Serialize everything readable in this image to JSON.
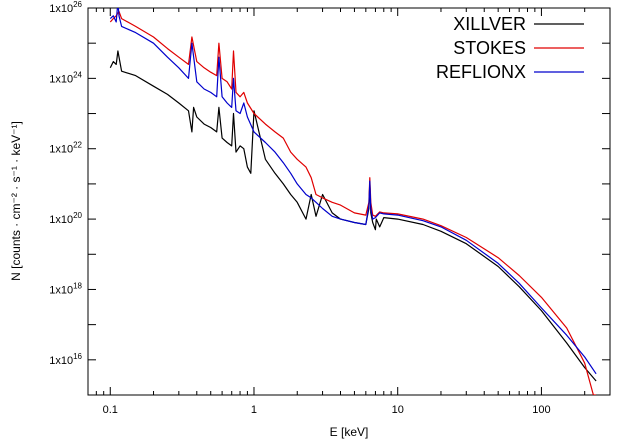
{
  "chart_data": {
    "type": "line",
    "title": "",
    "xlabel": "E [keV]",
    "ylabel": "N [counts · cm⁻² · s⁻¹ · keV⁻¹]",
    "x_scale": "log",
    "y_scale": "log",
    "xlim": [
      0.07,
      300
    ],
    "ylim": [
      1000000000000000.0,
      1e+26
    ],
    "x_ticks": [
      {
        "value": 0.1,
        "label": "0.1"
      },
      {
        "value": 1,
        "label": "1"
      },
      {
        "value": 10,
        "label": "10"
      },
      {
        "value": 100,
        "label": "100"
      }
    ],
    "y_ticks": [
      {
        "value": 1e+16,
        "mantissa": "1x10",
        "exp": "16"
      },
      {
        "value": 1e+18,
        "mantissa": "1x10",
        "exp": "18"
      },
      {
        "value": 1e+20,
        "mantissa": "1x10",
        "exp": "20"
      },
      {
        "value": 1e+22,
        "mantissa": "1x10",
        "exp": "22"
      },
      {
        "value": 1e+24,
        "mantissa": "1x10",
        "exp": "24"
      },
      {
        "value": 1e+26,
        "mantissa": "1x10",
        "exp": "26"
      }
    ],
    "legend_position": "top-right",
    "grid": false,
    "series": [
      {
        "name": "XILLVER",
        "color": "#000000",
        "x": [
          0.1,
          0.105,
          0.11,
          0.113,
          0.12,
          0.15,
          0.2,
          0.25,
          0.3,
          0.35,
          0.37,
          0.38,
          0.4,
          0.45,
          0.5,
          0.55,
          0.57,
          0.6,
          0.65,
          0.7,
          0.72,
          0.75,
          0.8,
          0.85,
          0.9,
          0.95,
          1.0,
          1.2,
          1.4,
          1.6,
          1.8,
          2.0,
          2.3,
          2.5,
          2.7,
          3.0,
          3.5,
          4.0,
          5.0,
          6.0,
          6.3,
          6.4,
          6.5,
          6.7,
          7.0,
          7.1,
          7.5,
          8.0,
          10,
          15,
          20,
          30,
          50,
          70,
          100,
          150,
          200,
          240
        ],
        "y": [
          2e+24,
          3e+24,
          2.5e+24,
          6e+24,
          1.6e+24,
          1.2e+24,
          6e+23,
          3.5e+23,
          2e+23,
          1.2e+23,
          3e+22,
          1.5e+23,
          8e+22,
          5e+22,
          4e+22,
          3e+22,
          1.5e+23,
          2e+22,
          1.5e+22,
          1.2e+22,
          1e+23,
          8e+21,
          1.2e+22,
          1e+22,
          3e+21,
          2e+21,
          1.2e+23,
          5e+21,
          2e+21,
          1e+21,
          5e+20,
          3e+20,
          1e+20,
          5e+20,
          1.2e+20,
          5e+20,
          1.5e+20,
          1e+20,
          8e+19,
          7e+19,
          2e+20,
          1e+21,
          1.5e+20,
          8e+19,
          5e+19,
          1e+20,
          6e+19,
          1.1e+20,
          1e+20,
          7e+19,
          4.5e+19,
          2e+19,
          4.5e+18,
          1.2e+18,
          2.5e+17,
          3e+16,
          6000000000000000.0,
          2500000000000000.0
        ]
      },
      {
        "name": "STOKES",
        "color": "#e00000",
        "x": [
          0.1,
          0.105,
          0.11,
          0.115,
          0.12,
          0.15,
          0.2,
          0.25,
          0.3,
          0.35,
          0.37,
          0.4,
          0.45,
          0.5,
          0.55,
          0.57,
          0.6,
          0.65,
          0.7,
          0.72,
          0.75,
          0.8,
          0.85,
          0.9,
          1.0,
          1.2,
          1.4,
          1.6,
          1.8,
          2.0,
          2.3,
          2.5,
          2.7,
          3.0,
          3.5,
          4.0,
          5.0,
          6.0,
          6.3,
          6.4,
          6.5,
          6.7,
          7.0,
          7.5,
          8.0,
          10,
          15,
          20,
          30,
          50,
          70,
          100,
          150,
          200,
          230,
          240
        ],
        "y": [
          4e+25,
          5e+25,
          6e+25,
          8e+25,
          5e+25,
          3e+25,
          1.5e+25,
          7e+24,
          4e+24,
          2.5e+24,
          1.5e+25,
          3e+24,
          2e+24,
          1.5e+24,
          1.2e+24,
          1e+25,
          1e+24,
          8e+23,
          5e+23,
          6e+24,
          4e+23,
          3e+23,
          4e+23,
          2e+23,
          1e+23,
          5e+22,
          3e+22,
          2e+22,
          8e+21,
          5e+21,
          3e+21,
          1.5e+21,
          5e+20,
          4e+20,
          3e+20,
          2.5e+20,
          1.5e+20,
          1.3e+20,
          3e+20,
          1.5e+21,
          3e+20,
          1.3e+20,
          1.2e+20,
          1.6e+20,
          1.5e+20,
          1.4e+20,
          1e+20,
          6.5e+19,
          3e+19,
          8e+18,
          2.5e+18,
          6e+17,
          8e+16,
          8000000000000000.0,
          1000000000000000.0,
          1000000000000000.0
        ]
      },
      {
        "name": "REFLIONX",
        "color": "#0000cc",
        "x": [
          0.1,
          0.105,
          0.11,
          0.113,
          0.115,
          0.12,
          0.15,
          0.2,
          0.25,
          0.3,
          0.35,
          0.37,
          0.4,
          0.45,
          0.5,
          0.55,
          0.57,
          0.6,
          0.65,
          0.7,
          0.72,
          0.75,
          0.8,
          0.85,
          0.9,
          1.0,
          1.2,
          1.4,
          1.6,
          1.8,
          2.0,
          2.3,
          2.5,
          2.7,
          3.0,
          3.5,
          4.0,
          5.0,
          6.0,
          6.3,
          6.4,
          6.5,
          6.7,
          7.0,
          7.5,
          8.0,
          10,
          15,
          20,
          30,
          50,
          70,
          100,
          150,
          200,
          240
        ],
        "y": [
          5e+25,
          6e+25,
          4e+25,
          1.5e+26,
          6e+25,
          3e+25,
          2e+25,
          1e+25,
          4e+24,
          2e+24,
          1e+24,
          1e+25,
          8e+23,
          5e+23,
          4e+23,
          3e+23,
          4e+24,
          3e+23,
          2e+23,
          1.5e+23,
          1e+24,
          1.2e+23,
          1e+23,
          2e+23,
          8e+22,
          3e+22,
          1.5e+22,
          8e+21,
          4e+21,
          2e+21,
          1e+21,
          5e+20,
          4e+20,
          3e+20,
          2e+20,
          1.2e+20,
          1e+20,
          8e+19,
          7e+19,
          2.5e+20,
          1.2e+21,
          2e+20,
          1e+20,
          1.1e+20,
          1.5e+20,
          1.4e+20,
          1.3e+20,
          9e+19,
          6e+19,
          2.5e+19,
          5.5e+18,
          1.5e+18,
          3e+17,
          5e+16,
          1.2e+16,
          4000000000000000.0
        ]
      }
    ]
  }
}
